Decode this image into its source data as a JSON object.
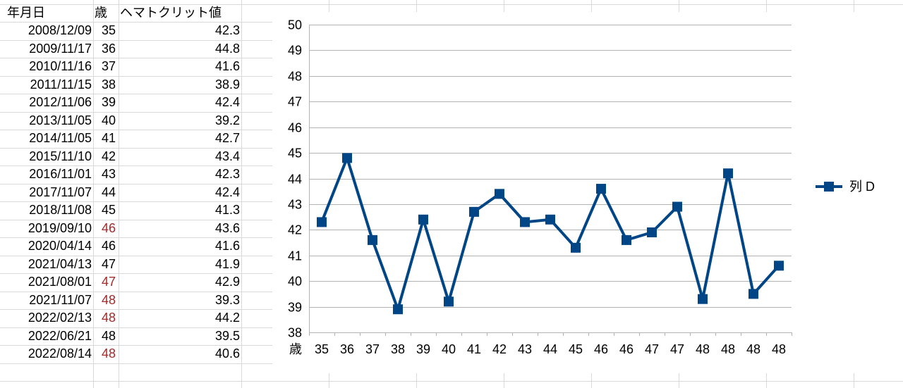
{
  "table": {
    "headers": [
      "年月日",
      "歳",
      "ヘマトクリット値"
    ],
    "rows": [
      {
        "date": "2008/12/09",
        "age": "35",
        "hct": "42.3",
        "age_red": false
      },
      {
        "date": "2009/11/17",
        "age": "36",
        "hct": "44.8",
        "age_red": false
      },
      {
        "date": "2010/11/16",
        "age": "37",
        "hct": "41.6",
        "age_red": false
      },
      {
        "date": "2011/11/15",
        "age": "38",
        "hct": "38.9",
        "age_red": false
      },
      {
        "date": "2012/11/06",
        "age": "39",
        "hct": "42.4",
        "age_red": false
      },
      {
        "date": "2013/11/05",
        "age": "40",
        "hct": "39.2",
        "age_red": false
      },
      {
        "date": "2014/11/05",
        "age": "41",
        "hct": "42.7",
        "age_red": false
      },
      {
        "date": "2015/11/10",
        "age": "42",
        "hct": "43.4",
        "age_red": false
      },
      {
        "date": "2016/11/01",
        "age": "43",
        "hct": "42.3",
        "age_red": false
      },
      {
        "date": "2017/11/07",
        "age": "44",
        "hct": "42.4",
        "age_red": false
      },
      {
        "date": "2018/11/08",
        "age": "45",
        "hct": "41.3",
        "age_red": false
      },
      {
        "date": "2019/09/10",
        "age": "46",
        "hct": "43.6",
        "age_red": true
      },
      {
        "date": "2020/04/14",
        "age": "46",
        "hct": "41.6",
        "age_red": false
      },
      {
        "date": "2021/04/13",
        "age": "47",
        "hct": "41.9",
        "age_red": false
      },
      {
        "date": "2021/08/01",
        "age": "47",
        "hct": "42.9",
        "age_red": true
      },
      {
        "date": "2021/11/07",
        "age": "48",
        "hct": "39.3",
        "age_red": true
      },
      {
        "date": "2022/02/13",
        "age": "48",
        "hct": "44.2",
        "age_red": true
      },
      {
        "date": "2022/06/21",
        "age": "48",
        "hct": "39.5",
        "age_red": false
      },
      {
        "date": "2022/08/14",
        "age": "48",
        "hct": "40.6",
        "age_red": true
      }
    ]
  },
  "colors": {
    "series": "#004586",
    "age_highlight": "#a52a2a",
    "gridline": "#b3b3b3",
    "cell_border": "#d9d9d9"
  },
  "chart_data": {
    "type": "line",
    "marker": "square",
    "xlabel": "歳",
    "categories": [
      "35",
      "36",
      "37",
      "38",
      "39",
      "40",
      "41",
      "42",
      "43",
      "44",
      "45",
      "46",
      "46",
      "47",
      "47",
      "48",
      "48",
      "48",
      "48"
    ],
    "series": [
      {
        "name": "列 D",
        "values": [
          42.3,
          44.8,
          41.6,
          38.9,
          42.4,
          39.2,
          42.7,
          43.4,
          42.3,
          42.4,
          41.3,
          43.6,
          41.6,
          41.9,
          42.9,
          39.3,
          44.2,
          39.5,
          40.6
        ]
      }
    ],
    "ylim": [
      38,
      50
    ],
    "yticks": [
      38,
      39,
      40,
      41,
      42,
      43,
      44,
      45,
      46,
      47,
      48,
      49,
      50
    ],
    "grid": true,
    "legend": "right"
  }
}
